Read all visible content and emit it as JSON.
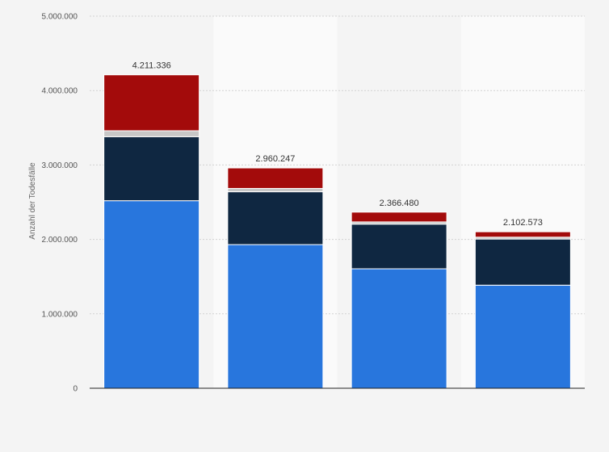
{
  "chart_data": {
    "type": "bar",
    "stacked": true,
    "title": "",
    "xlabel": "",
    "ylabel": "Anzahl der Todesfälle",
    "ylim": [
      0,
      5000000
    ],
    "y_ticks": [
      0,
      1000000,
      2000000,
      3000000,
      4000000,
      5000000
    ],
    "y_tick_labels": [
      "0",
      "1.000.000",
      "2.000.000",
      "3.000.000",
      "4.000.000",
      "5.000.000"
    ],
    "categories": [
      "",
      "",
      "",
      ""
    ],
    "totals": [
      4211336,
      2960247,
      2366480,
      2102573
    ],
    "total_labels": [
      "4.211.336",
      "2.960.247",
      "2.366.480",
      "2.102.573"
    ],
    "series": [
      {
        "color": "#2876dd",
        "values": [
          2520000,
          1930000,
          1605000,
          1385000
        ]
      },
      {
        "color": "#0f2741",
        "values": [
          860000,
          710000,
          600000,
          620000
        ]
      },
      {
        "color": "#c7c7c7",
        "values": [
          80000,
          45000,
          30000,
          25000
        ]
      },
      {
        "color": "#a30b0b",
        "values": [
          751336,
          275247,
          131480,
          72573
        ]
      }
    ],
    "grid": true,
    "legend": "none",
    "background_bands": true
  }
}
